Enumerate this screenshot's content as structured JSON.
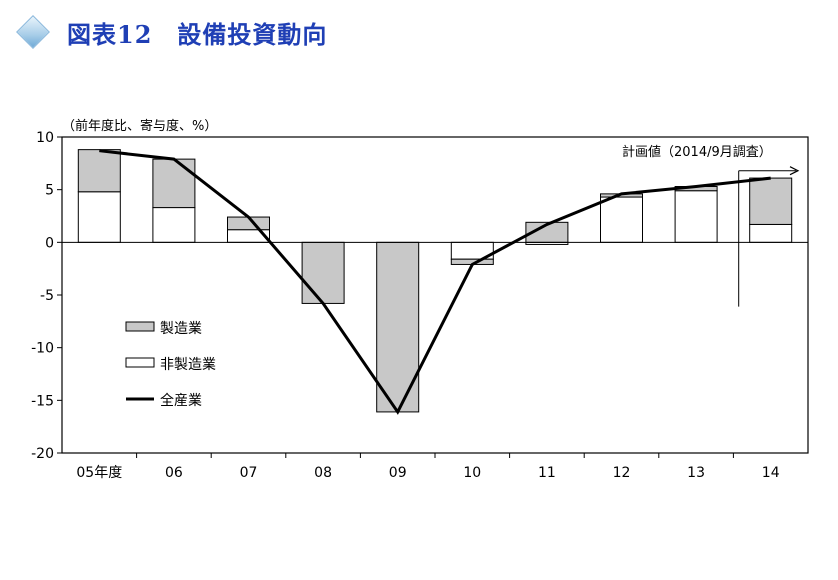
{
  "header": {
    "title": "図表12　設備投資動向",
    "icon": "diamond-icon"
  },
  "chart_data": {
    "type": "bar",
    "unit_label": "（前年度比、寄与度、%）",
    "annotation": "計画値（2014/9月調査）",
    "categories": [
      "05年度",
      "06",
      "07",
      "08",
      "09",
      "10",
      "11",
      "12",
      "13",
      "14"
    ],
    "ylim": [
      -20,
      10
    ],
    "yticks": [
      10,
      5,
      0,
      -5,
      -10,
      -15,
      -20
    ],
    "series": [
      {
        "name": "非製造業",
        "type": "bar",
        "color": "#ffffff",
        "values": [
          4.8,
          3.3,
          1.2,
          0,
          0,
          -1.6,
          -0.2,
          4.3,
          4.9,
          1.7
        ]
      },
      {
        "name": "製造業",
        "type": "bar",
        "color": "#c8c8c8",
        "values": [
          4.0,
          4.6,
          1.2,
          -5.8,
          -16.1,
          -0.5,
          1.9,
          0.3,
          0.4,
          4.4
        ]
      },
      {
        "name": "全産業",
        "type": "line",
        "color": "#000000",
        "values": [
          8.7,
          7.9,
          2.4,
          -5.8,
          -16.1,
          -2.1,
          1.7,
          4.6,
          5.3,
          6.1
        ]
      }
    ],
    "legend": [
      "製造業",
      "非製造業",
      "全産業"
    ],
    "grid": false,
    "legend_position": "bottom-left"
  }
}
